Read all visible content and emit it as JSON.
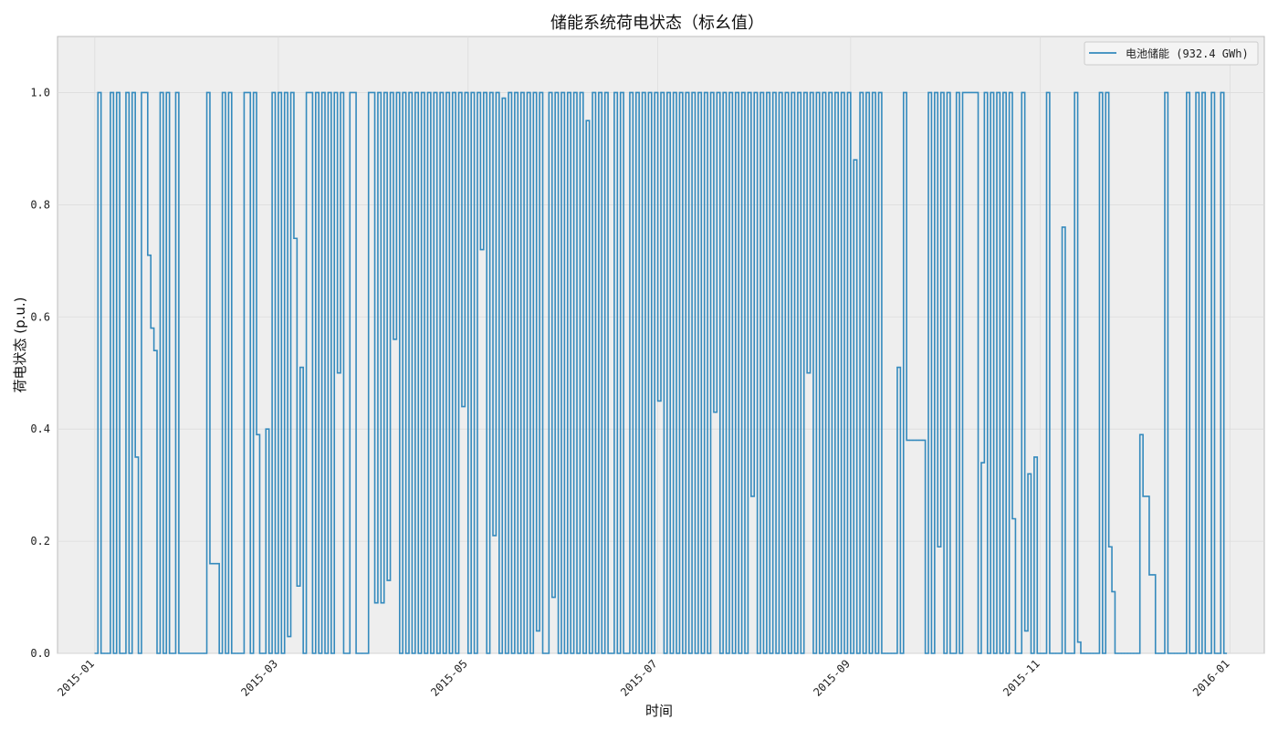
{
  "chart_data": {
    "type": "line",
    "title": "储能系统荷电状态（标幺值）",
    "xlabel": "时间",
    "ylabel": "荷电状态 (p.u.)",
    "xlim": [
      "2014-12-20",
      "2016-01-12"
    ],
    "ylim": [
      0.0,
      1.1
    ],
    "x_tick_labels": [
      "2015-01",
      "2015-03",
      "2015-05",
      "2015-07",
      "2015-09",
      "2015-11",
      "2016-01"
    ],
    "y_tick_labels": [
      "0.0",
      "0.2",
      "0.4",
      "0.6",
      "0.8",
      "1.0"
    ],
    "y_tick_values": [
      0.0,
      0.2,
      0.4,
      0.6,
      0.8,
      1.0
    ],
    "grid": true,
    "legend_position": "top-right",
    "series_color": "#348abd",
    "series": [
      {
        "name": "电池储能 (932.4 GWh)",
        "x": [
          "2015-01-01",
          "2015-01-02",
          "2015-01-03",
          "2015-01-04",
          "2015-01-05",
          "2015-01-06",
          "2015-01-07",
          "2015-01-08",
          "2015-01-09",
          "2015-01-10",
          "2015-01-11",
          "2015-01-12",
          "2015-01-13",
          "2015-01-14",
          "2015-01-15",
          "2015-01-16",
          "2015-01-17",
          "2015-01-18",
          "2015-01-19",
          "2015-01-20",
          "2015-01-21",
          "2015-01-22",
          "2015-01-23",
          "2015-01-24",
          "2015-01-25",
          "2015-01-26",
          "2015-01-27",
          "2015-01-28",
          "2015-02-05",
          "2015-02-06",
          "2015-02-07",
          "2015-02-08",
          "2015-02-10",
          "2015-02-11",
          "2015-02-12",
          "2015-02-13",
          "2015-02-14",
          "2015-02-15",
          "2015-02-16",
          "2015-02-17",
          "2015-02-18",
          "2015-02-20",
          "2015-02-21",
          "2015-02-22",
          "2015-02-23",
          "2015-02-24",
          "2015-02-25",
          "2015-02-26",
          "2015-02-27",
          "2015-02-28",
          "2015-03-01",
          "2015-03-02",
          "2015-03-03",
          "2015-03-04",
          "2015-03-05",
          "2015-03-06",
          "2015-03-07",
          "2015-03-08",
          "2015-03-09",
          "2015-03-10",
          "2015-03-12",
          "2015-03-13",
          "2015-03-14",
          "2015-03-15",
          "2015-03-16",
          "2015-03-17",
          "2015-03-18",
          "2015-03-19",
          "2015-03-20",
          "2015-03-21",
          "2015-03-22",
          "2015-03-24",
          "2015-03-26",
          "2015-03-28",
          "2015-03-30",
          "2015-04-01",
          "2015-04-02",
          "2015-04-03",
          "2015-04-04",
          "2015-04-05",
          "2015-04-06",
          "2015-04-07",
          "2015-04-08",
          "2015-04-09",
          "2015-04-10",
          "2015-04-11",
          "2015-04-12",
          "2015-04-13",
          "2015-04-14",
          "2015-04-15",
          "2015-04-16",
          "2015-04-17",
          "2015-04-18",
          "2015-04-19",
          "2015-04-20",
          "2015-04-21",
          "2015-04-22",
          "2015-04-23",
          "2015-04-24",
          "2015-04-25",
          "2015-04-26",
          "2015-04-27",
          "2015-04-28",
          "2015-04-29",
          "2015-04-30",
          "2015-05-01",
          "2015-05-02",
          "2015-05-03",
          "2015-05-04",
          "2015-05-05",
          "2015-05-06",
          "2015-05-07",
          "2015-05-08",
          "2015-05-09",
          "2015-05-10",
          "2015-05-11",
          "2015-05-12",
          "2015-05-13",
          "2015-05-14",
          "2015-05-15",
          "2015-05-16",
          "2015-05-17",
          "2015-05-18",
          "2015-05-19",
          "2015-05-20",
          "2015-05-21",
          "2015-05-22",
          "2015-05-23",
          "2015-05-24",
          "2015-05-25",
          "2015-05-26",
          "2015-05-27",
          "2015-05-28",
          "2015-05-29",
          "2015-05-30",
          "2015-05-31",
          "2015-06-01",
          "2015-06-02",
          "2015-06-03",
          "2015-06-04",
          "2015-06-05",
          "2015-06-06",
          "2015-06-07",
          "2015-06-08",
          "2015-06-09",
          "2015-06-10",
          "2015-06-11",
          "2015-06-12",
          "2015-06-13",
          "2015-06-14",
          "2015-06-15",
          "2015-06-16",
          "2015-06-17",
          "2015-06-18",
          "2015-06-19",
          "2015-06-20",
          "2015-06-21",
          "2015-06-22",
          "2015-06-23",
          "2015-06-24",
          "2015-06-25",
          "2015-06-26",
          "2015-06-27",
          "2015-06-28",
          "2015-06-29",
          "2015-06-30",
          "2015-07-01",
          "2015-07-02",
          "2015-07-03",
          "2015-07-04",
          "2015-07-05",
          "2015-07-06",
          "2015-07-07",
          "2015-07-08",
          "2015-07-09",
          "2015-07-10",
          "2015-07-11",
          "2015-07-12",
          "2015-07-13",
          "2015-07-14",
          "2015-07-15",
          "2015-07-16",
          "2015-07-17",
          "2015-07-18",
          "2015-07-19",
          "2015-07-20",
          "2015-07-21",
          "2015-07-22",
          "2015-07-23",
          "2015-07-24",
          "2015-07-25",
          "2015-07-26",
          "2015-07-27",
          "2015-07-28",
          "2015-07-29",
          "2015-07-30",
          "2015-07-31",
          "2015-08-01",
          "2015-08-02",
          "2015-08-03",
          "2015-08-04",
          "2015-08-05",
          "2015-08-06",
          "2015-08-07",
          "2015-08-08",
          "2015-08-09",
          "2015-08-10",
          "2015-08-11",
          "2015-08-12",
          "2015-08-13",
          "2015-08-14",
          "2015-08-15",
          "2015-08-16",
          "2015-08-17",
          "2015-08-18",
          "2015-08-19",
          "2015-08-20",
          "2015-08-21",
          "2015-08-22",
          "2015-08-23",
          "2015-08-24",
          "2015-08-25",
          "2015-08-26",
          "2015-08-27",
          "2015-08-28",
          "2015-08-29",
          "2015-08-30",
          "2015-08-31",
          "2015-09-01",
          "2015-09-02",
          "2015-09-03",
          "2015-09-04",
          "2015-09-05",
          "2015-09-06",
          "2015-09-07",
          "2015-09-08",
          "2015-09-09",
          "2015-09-10",
          "2015-09-11",
          "2015-09-12",
          "2015-09-13",
          "2015-09-14",
          "2015-09-15",
          "2015-09-16",
          "2015-09-17",
          "2015-09-18",
          "2015-09-19",
          "2015-09-20",
          "2015-09-21",
          "2015-09-22",
          "2015-09-23",
          "2015-09-24",
          "2015-09-25",
          "2015-09-26",
          "2015-09-27",
          "2015-09-28",
          "2015-09-29",
          "2015-09-30",
          "2015-10-01",
          "2015-10-02",
          "2015-10-03",
          "2015-10-04",
          "2015-10-05",
          "2015-10-06",
          "2015-10-07",
          "2015-10-08",
          "2015-10-09",
          "2015-10-10",
          "2015-10-11",
          "2015-10-12",
          "2015-10-13",
          "2015-10-14",
          "2015-10-15",
          "2015-10-16",
          "2015-10-17",
          "2015-10-18",
          "2015-10-19",
          "2015-10-20",
          "2015-10-21",
          "2015-10-22",
          "2015-10-23",
          "2015-10-24",
          "2015-10-25",
          "2015-10-26",
          "2015-10-27",
          "2015-10-28",
          "2015-10-29",
          "2015-10-30",
          "2015-10-31",
          "2015-11-01",
          "2015-11-02",
          "2015-11-03",
          "2015-11-04",
          "2015-11-05",
          "2015-11-06",
          "2015-11-07",
          "2015-11-08",
          "2015-11-09",
          "2015-11-10",
          "2015-11-11",
          "2015-11-12",
          "2015-11-13",
          "2015-11-14",
          "2015-11-15",
          "2015-11-16",
          "2015-11-17",
          "2015-11-18",
          "2015-11-19",
          "2015-11-20",
          "2015-11-21",
          "2015-11-22",
          "2015-11-23",
          "2015-11-24",
          "2015-11-25",
          "2015-11-26",
          "2015-11-27",
          "2015-11-28",
          "2015-11-29",
          "2015-11-30",
          "2015-12-01",
          "2015-12-02",
          "2015-12-03",
          "2015-12-04",
          "2015-12-05",
          "2015-12-06",
          "2015-12-07",
          "2015-12-08",
          "2015-12-09",
          "2015-12-10",
          "2015-12-11",
          "2015-12-12",
          "2015-12-13",
          "2015-12-14",
          "2015-12-15",
          "2015-12-16",
          "2015-12-17",
          "2015-12-18",
          "2015-12-19",
          "2015-12-20",
          "2015-12-21",
          "2015-12-22",
          "2015-12-23",
          "2015-12-24",
          "2015-12-25",
          "2015-12-26",
          "2015-12-27",
          "2015-12-28",
          "2015-12-29",
          "2015-12-30"
        ],
        "y": [
          0.0,
          1.0,
          0.0,
          0.0,
          0.0,
          1.0,
          0.0,
          1.0,
          0.0,
          0.0,
          1.0,
          0.0,
          1.0,
          0.35,
          0.0,
          1.0,
          1.0,
          0.71,
          0.58,
          0.54,
          0.0,
          1.0,
          0.0,
          1.0,
          0.0,
          0.0,
          1.0,
          0.0,
          0.0,
          1.0,
          0.16,
          0.16,
          0.0,
          1.0,
          0.0,
          1.0,
          0.0,
          0.0,
          0.0,
          0.0,
          1.0,
          0.0,
          1.0,
          0.39,
          0.0,
          0.0,
          0.4,
          0.0,
          1.0,
          0.0,
          1.0,
          0.0,
          1.0,
          0.03,
          1.0,
          0.74,
          0.12,
          0.51,
          0.0,
          1.0,
          0.0,
          1.0,
          0.0,
          1.0,
          0.0,
          1.0,
          0.0,
          1.0,
          0.5,
          1.0,
          0.0,
          1.0,
          0.0,
          0.0,
          1.0,
          0.09,
          1.0,
          0.09,
          1.0,
          0.13,
          1.0,
          0.56,
          1.0,
          0.0,
          1.0,
          0.0,
          1.0,
          0.0,
          1.0,
          0.0,
          1.0,
          0.0,
          1.0,
          0.0,
          1.0,
          0.0,
          1.0,
          0.0,
          1.0,
          0.0,
          1.0,
          0.0,
          1.0,
          0.44,
          1.0,
          0.0,
          1.0,
          0.0,
          1.0,
          0.72,
          1.0,
          0.0,
          1.0,
          0.21,
          1.0,
          0.0,
          0.99,
          0.0,
          1.0,
          0.0,
          1.0,
          0.0,
          1.0,
          0.0,
          1.0,
          0.0,
          1.0,
          0.04,
          1.0,
          0.0,
          0.0,
          1.0,
          0.1,
          1.0,
          0.0,
          1.0,
          0.0,
          1.0,
          0.0,
          1.0,
          0.0,
          1.0,
          0.0,
          0.95,
          0.0,
          1.0,
          0.0,
          1.0,
          0.0,
          1.0,
          0.0,
          0.0,
          1.0,
          0.0,
          1.0,
          0.0,
          0.0,
          1.0,
          0.0,
          1.0,
          0.0,
          1.0,
          0.0,
          1.0,
          0.0,
          1.0,
          0.45,
          1.0,
          0.0,
          1.0,
          0.0,
          1.0,
          0.0,
          1.0,
          0.0,
          1.0,
          0.0,
          1.0,
          0.0,
          1.0,
          0.0,
          1.0,
          0.0,
          1.0,
          0.43,
          1.0,
          0.0,
          1.0,
          0.0,
          1.0,
          0.0,
          1.0,
          0.0,
          1.0,
          0.0,
          1.0,
          0.28,
          1.0,
          0.0,
          1.0,
          0.0,
          1.0,
          0.0,
          1.0,
          0.0,
          1.0,
          0.0,
          1.0,
          0.0,
          1.0,
          0.0,
          1.0,
          0.0,
          1.0,
          0.5,
          1.0,
          0.0,
          1.0,
          0.0,
          1.0,
          0.0,
          1.0,
          0.0,
          1.0,
          0.0,
          1.0,
          0.0,
          1.0,
          0.0,
          0.88,
          0.0,
          1.0,
          0.0,
          1.0,
          0.0,
          1.0,
          0.0,
          1.0,
          0.0,
          0.0,
          0.0,
          0.0,
          0.0,
          0.51,
          0.0,
          1.0,
          0.38,
          0.38,
          0.38,
          0.38,
          0.38,
          0.38,
          0.0,
          1.0,
          0.0,
          1.0,
          0.19,
          1.0,
          0.0,
          1.0,
          0.0,
          0.0,
          1.0,
          0.0,
          1.0,
          1.0,
          1.0,
          1.0,
          1.0,
          0.0,
          0.34,
          1.0,
          0.0,
          1.0,
          0.0,
          1.0,
          0.0,
          1.0,
          0.0,
          1.0,
          0.24,
          0.0,
          0.0,
          1.0,
          0.04,
          0.32,
          0.0,
          0.35,
          0.0,
          0.0,
          0.0,
          1.0,
          0.0,
          0.0,
          0.0,
          0.0,
          0.76,
          0.0,
          0.0,
          0.0,
          1.0,
          0.02,
          0.0,
          0.0,
          0.0,
          0.0,
          0.0,
          0.0,
          1.0,
          0.0,
          1.0,
          0.19,
          0.11,
          0.0,
          0.0,
          0.0,
          0.0,
          0.0,
          0.0,
          0.0,
          0.0,
          0.39,
          0.28,
          0.28,
          0.14,
          0.14,
          0.0,
          0.0,
          0.0,
          1.0,
          0.0,
          0.0,
          0.0,
          0.0,
          0.0,
          0.0,
          1.0,
          0.0,
          0.0,
          1.0,
          0.0,
          1.0,
          0.0,
          0.0,
          1.0,
          0.0,
          0.0,
          1.0,
          0.0
        ]
      }
    ]
  }
}
